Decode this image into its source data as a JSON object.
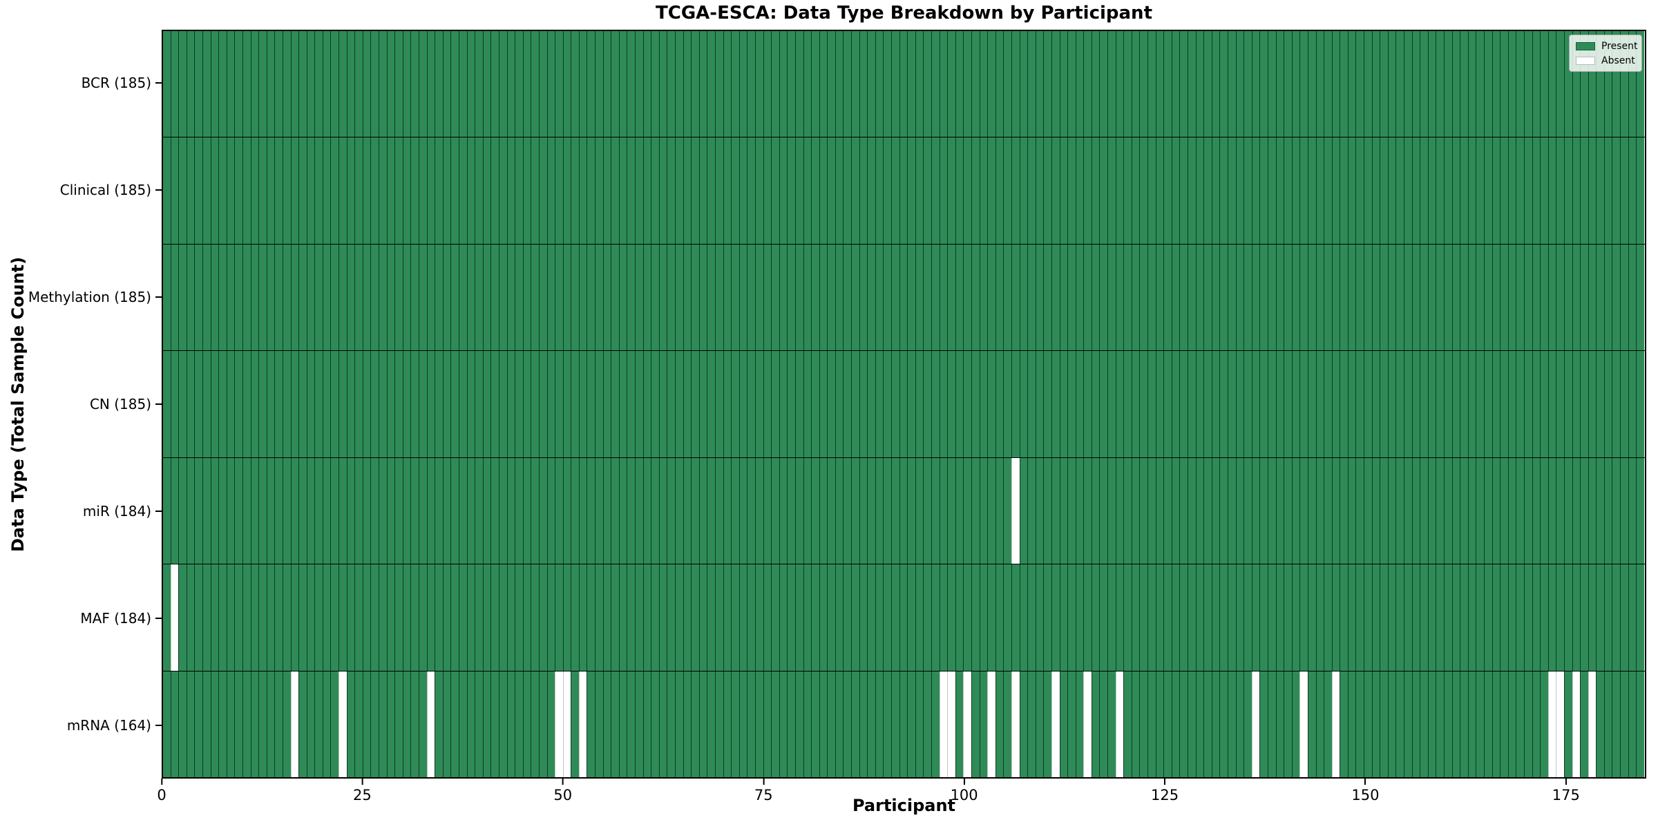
{
  "chart_data": {
    "type": "heatmap",
    "title": "TCGA-ESCA: Data Type Breakdown by Participant",
    "xlabel": "Participant",
    "ylabel": "Data Type (Total Sample Count)",
    "n_participants": 185,
    "x_ticks": [
      0,
      25,
      50,
      75,
      100,
      125,
      150,
      175
    ],
    "xlim": [
      0,
      185
    ],
    "grid": false,
    "legend_position": "upper right",
    "colors": {
      "present": "#2e8b57",
      "absent": "#ffffff",
      "cell_edge": "rgba(0,0,0,0.6)",
      "row_separator": "#000000"
    },
    "legend": [
      {
        "label": "Present",
        "color": "#2e8b57"
      },
      {
        "label": "Absent",
        "color": "#ffffff"
      }
    ],
    "rows": [
      {
        "label": "BCR (185)",
        "data_type": "BCR",
        "present_count": 185,
        "absent_participants": []
      },
      {
        "label": "Clinical (185)",
        "data_type": "Clinical",
        "present_count": 185,
        "absent_participants": []
      },
      {
        "label": "Methylation (185)",
        "data_type": "Methylation",
        "present_count": 185,
        "absent_participants": []
      },
      {
        "label": "CN (185)",
        "data_type": "CN",
        "present_count": 185,
        "absent_participants": []
      },
      {
        "label": "miR (184)",
        "data_type": "miR",
        "present_count": 184,
        "absent_participants": [
          107
        ]
      },
      {
        "label": "MAF (184)",
        "data_type": "MAF",
        "present_count": 184,
        "absent_participants": [
          2
        ]
      },
      {
        "label": "mRNA (164)",
        "data_type": "mRNA",
        "present_count": 164,
        "absent_participants": [
          17,
          23,
          34,
          50,
          51,
          53,
          98,
          99,
          101,
          104,
          107,
          112,
          116,
          120,
          137,
          143,
          147,
          174,
          175,
          177,
          179
        ]
      }
    ]
  }
}
